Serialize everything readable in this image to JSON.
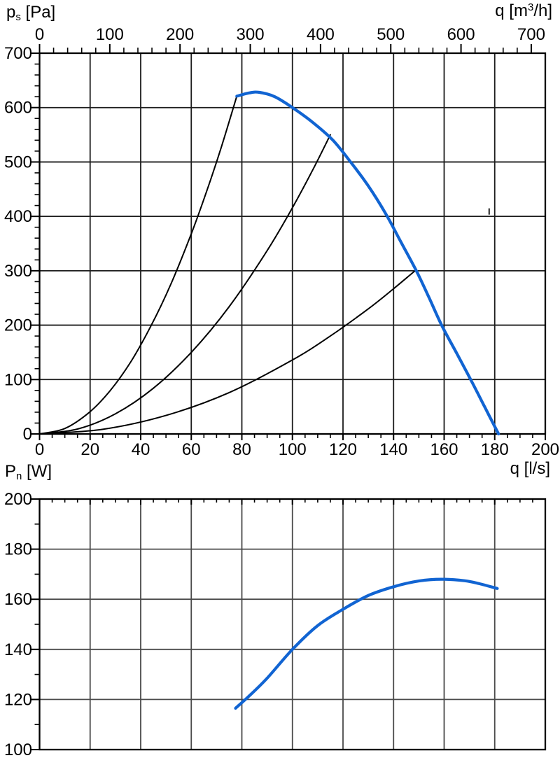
{
  "page": {
    "background": "#ffffff"
  },
  "labels": {
    "pressure_axis": {
      "base": "p",
      "sub": "s",
      "rest": " [Pa]"
    },
    "flow_top_axis": {
      "base": "q",
      "pre": " [m",
      "sup": "3",
      "post": "/h]"
    },
    "power_axis": {
      "base": "P",
      "sub": "n",
      "rest": " [W]"
    },
    "flow_bottom_axis": {
      "text": "q [l/s]"
    }
  },
  "colors": {
    "curve_blue": "#1164d2",
    "grid_top": "#1c1c1c",
    "grid_bottom": "#4a4a4a",
    "axis": "#000000",
    "tick_text": "#000000",
    "stray_mark": "#3a3a3a"
  },
  "chart_data": [
    {
      "type": "line",
      "id": "pressure-chart",
      "title": "",
      "x_axis_bottom": {
        "label": "q [l/s]",
        "min": 0,
        "max": 200,
        "major": 20,
        "minor": 5,
        "tick_labels": [
          "0",
          "20",
          "40",
          "60",
          "80",
          "100",
          "120",
          "140",
          "160",
          "180",
          "200"
        ]
      },
      "x_axis_top": {
        "label": "q [m3/h]",
        "min": 0,
        "max": 700,
        "major": 100,
        "minor": 20,
        "ls_per_unit": 0.27778,
        "tick_labels": [
          "0",
          "100",
          "200",
          "300",
          "400",
          "500",
          "600",
          "700"
        ]
      },
      "y_axis": {
        "label": "ps [Pa]",
        "min": 0,
        "max": 700,
        "major": 100,
        "minor": 20,
        "tick_labels": [
          "0",
          "100",
          "200",
          "300",
          "400",
          "500",
          "600",
          "700"
        ]
      },
      "grid": "both-major",
      "legend": "none",
      "series": [
        {
          "name": "fan-pressure-curve",
          "color": "blue",
          "width": 4.2,
          "points": [
            [
              78,
              621
            ],
            [
              83,
              627
            ],
            [
              87,
              628
            ],
            [
              93,
              620
            ],
            [
              100,
              600
            ],
            [
              108,
              573
            ],
            [
              116,
              540
            ],
            [
              123,
              500
            ],
            [
              130,
              456
            ],
            [
              137,
              404
            ],
            [
              143,
              352
            ],
            [
              149,
              300
            ],
            [
              154,
              251
            ],
            [
              159,
              200
            ],
            [
              165,
              148
            ],
            [
              170.5,
              100
            ],
            [
              176,
              50
            ],
            [
              181.5,
              0
            ]
          ]
        },
        {
          "name": "system-resistance-curve-1",
          "color": "black",
          "width": 2,
          "points": [
            [
              0,
              0
            ],
            [
              10,
              10
            ],
            [
              20,
              41
            ],
            [
              28,
              80
            ],
            [
              36,
              132
            ],
            [
              44,
              198
            ],
            [
              52,
              276
            ],
            [
              60,
              368
            ],
            [
              66,
              445
            ],
            [
              72,
              529
            ],
            [
              78,
              621
            ]
          ]
        },
        {
          "name": "system-resistance-curve-2",
          "color": "black",
          "width": 2,
          "points": [
            [
              0,
              0
            ],
            [
              15,
              9
            ],
            [
              30,
              37
            ],
            [
              45,
              84
            ],
            [
              60,
              150
            ],
            [
              75,
              234
            ],
            [
              90,
              337
            ],
            [
              100,
              416
            ],
            [
              108,
              485
            ],
            [
              115,
              550
            ]
          ]
        },
        {
          "name": "system-resistance-curve-3",
          "color": "black",
          "width": 2,
          "points": [
            [
              0,
              0
            ],
            [
              25,
              8.5
            ],
            [
              50,
              34
            ],
            [
              75,
              76
            ],
            [
              100,
              136
            ],
            [
              115,
              180
            ],
            [
              130,
              230
            ],
            [
              140,
              267
            ],
            [
              148.5,
              300
            ]
          ]
        }
      ],
      "annotation_mark": {
        "q": 177.8,
        "p": 409
      }
    },
    {
      "type": "line",
      "id": "power-chart",
      "title": "",
      "x_axis": {
        "label": "",
        "min": 0,
        "max": 200,
        "major": 20,
        "minor": 5,
        "tick_labels": []
      },
      "y_axis": {
        "label": "Pn [W]",
        "min": 100,
        "max": 200,
        "major": 20,
        "minor": 10,
        "tick_labels": [
          "100",
          "120",
          "140",
          "160",
          "180",
          "200"
        ]
      },
      "grid": "both-major",
      "legend": "none",
      "series": [
        {
          "name": "power-curve",
          "color": "blue",
          "width": 4.2,
          "points": [
            [
              77.5,
              116.5
            ],
            [
              83,
              121.5
            ],
            [
              90,
              128.5
            ],
            [
              100,
              140
            ],
            [
              110,
              149.5
            ],
            [
              120,
              156
            ],
            [
              130,
              161.5
            ],
            [
              140,
              165
            ],
            [
              150,
              167.3
            ],
            [
              159,
              168
            ],
            [
              168,
              167.4
            ],
            [
              174,
              166.2
            ],
            [
              181,
              164.3
            ]
          ]
        }
      ]
    }
  ]
}
